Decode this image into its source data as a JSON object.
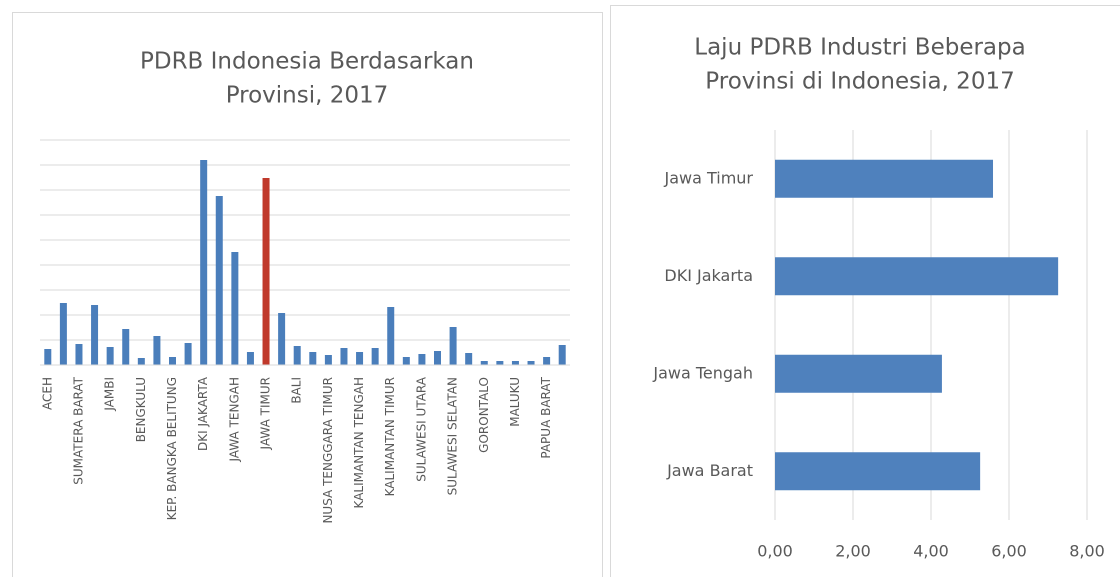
{
  "chart_data": [
    {
      "type": "bar",
      "title": [
        "PDRB Indonesia Berdasarkan",
        "Provinsi, 2017"
      ],
      "categories": [
        "ACEH",
        null,
        "SUMATERA BARAT",
        null,
        "JAMBI",
        null,
        "BENGKULU",
        null,
        "KEP. BANGKA BELITUNG",
        null,
        "DKI JAKARTA",
        null,
        "JAWA TENGAH",
        null,
        "JAWA TIMUR",
        null,
        "BALI",
        null,
        "NUSA TENGGARA TIMUR",
        null,
        "KALIMANTAN TENGAH",
        null,
        "KALIMANTAN TIMUR",
        null,
        "SULAWESI UTARA",
        null,
        "SULAWESI SELATAN",
        null,
        "GORONTALO",
        null,
        "MALUKU",
        null,
        "PAPUA BARAT",
        null
      ],
      "values": [
        0.64,
        2.48,
        0.84,
        2.4,
        0.72,
        1.44,
        0.28,
        1.16,
        0.32,
        0.88,
        8.2,
        6.76,
        4.52,
        0.52,
        7.48,
        2.08,
        0.76,
        0.52,
        0.4,
        0.68,
        0.52,
        0.68,
        2.32,
        0.32,
        0.44,
        0.56,
        1.52,
        0.48,
        0.16,
        0.16,
        0.16,
        0.16,
        0.32,
        0.8
      ],
      "colors": [
        "#4a7ebb",
        "#4a7ebb",
        "#4a7ebb",
        "#4a7ebb",
        "#4a7ebb",
        "#4a7ebb",
        "#4a7ebb",
        "#4a7ebb",
        "#4a7ebb",
        "#4a7ebb",
        "#4a7ebb",
        "#4a7ebb",
        "#4a7ebb",
        "#4a7ebb",
        "#c0392b",
        "#4a7ebb",
        "#4a7ebb",
        "#4a7ebb",
        "#4a7ebb",
        "#4a7ebb",
        "#4a7ebb",
        "#4a7ebb",
        "#4a7ebb",
        "#4a7ebb",
        "#4a7ebb",
        "#4a7ebb",
        "#4a7ebb",
        "#4a7ebb",
        "#4a7ebb",
        "#4a7ebb",
        "#4a7ebb",
        "#4a7ebb",
        "#4a7ebb",
        "#4a7ebb"
      ],
      "ylim": [
        0,
        9
      ],
      "yticks": [
        0,
        1,
        2,
        3,
        4,
        5,
        6,
        7,
        8,
        9
      ],
      "grid": true
    },
    {
      "type": "hbar",
      "title": [
        "Laju PDRB Industri  Beberapa",
        "Provinsi di Indonesia, 2017"
      ],
      "categories": [
        "Jawa Timur",
        "DKI Jakarta",
        "Jawa Tengah",
        "Jawa Barat"
      ],
      "values": [
        5.59,
        7.26,
        4.28,
        5.26
      ],
      "color": "#4f81bd",
      "xlim": [
        0,
        8
      ],
      "xticks": [
        {
          "value": 0,
          "label": "0,00"
        },
        {
          "value": 2,
          "label": "2,00"
        },
        {
          "value": 4,
          "label": "4,00"
        },
        {
          "value": 6,
          "label": "6,00"
        },
        {
          "value": 8,
          "label": "8,00"
        }
      ],
      "grid": true
    }
  ]
}
